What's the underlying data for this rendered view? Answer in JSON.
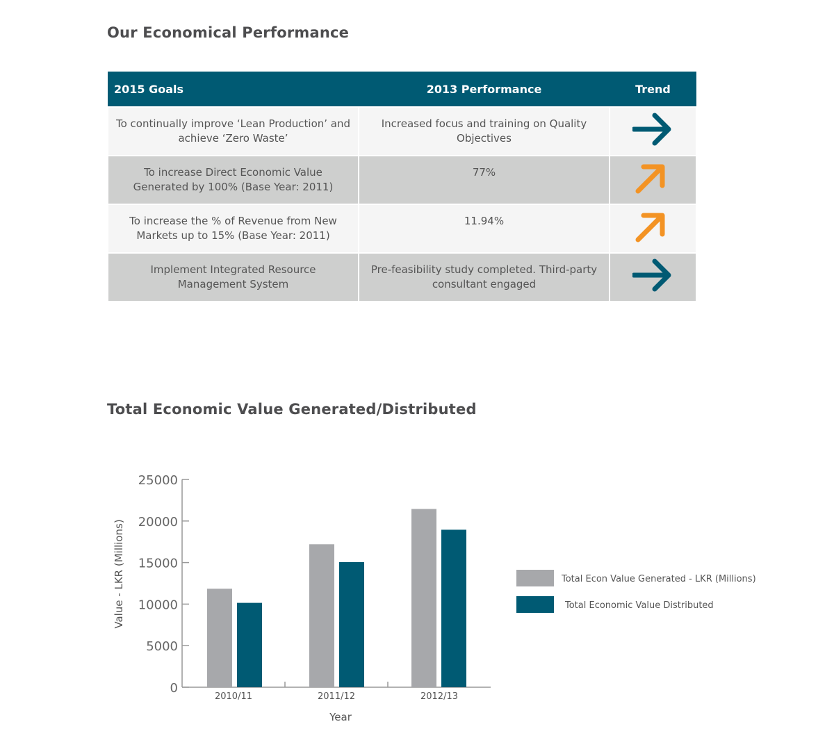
{
  "section1_title": "Our Economical Performance",
  "table": {
    "headers": [
      "2015 Goals",
      "2013 Performance",
      "Trend"
    ],
    "rows": [
      {
        "goal": "To continually improve ‘Lean Production’ and achieve ‘Zero Waste’",
        "performance": "Increased focus and training on Quality Objectives",
        "trend": "arrow-right",
        "trend_color": "#005a73"
      },
      {
        "goal": "To increase Direct Economic Value Generated by 100% (Base Year: 2011)",
        "performance": "77%",
        "trend": "arrow-up-right",
        "trend_color": "#f39324"
      },
      {
        "goal": "To increase the % of Revenue from New Markets up to 15% (Base Year: 2011)",
        "performance": "11.94%",
        "trend": "arrow-up-right",
        "trend_color": "#f39324"
      },
      {
        "goal": "Implement Integrated Resource Management System",
        "performance": "Pre-feasibility study completed. Third-party consultant engaged",
        "trend": "arrow-right",
        "trend_color": "#005a73"
      }
    ]
  },
  "section2_title": "Total Economic Value Generated/Distributed",
  "chart_data": {
    "type": "bar",
    "title": "Total Economic Value Generated/Distributed",
    "xlabel": "Year",
    "ylabel": "Value - LKR (Millions)",
    "categories": [
      "2010/11",
      "2011/12",
      "2012/13"
    ],
    "ylim": [
      0,
      25000
    ],
    "yticks": [
      0,
      5000,
      10000,
      15000,
      20000,
      25000
    ],
    "grid": false,
    "legend_position": "right",
    "series": [
      {
        "name": "Total Econ Value Generated - LKR (Millions)",
        "color": "#a7a8ab",
        "values": [
          11850,
          17200,
          21450
        ]
      },
      {
        "name": "Total Economic Value Distributed",
        "color": "#005a73",
        "values": [
          10150,
          15050,
          18950
        ]
      }
    ]
  }
}
